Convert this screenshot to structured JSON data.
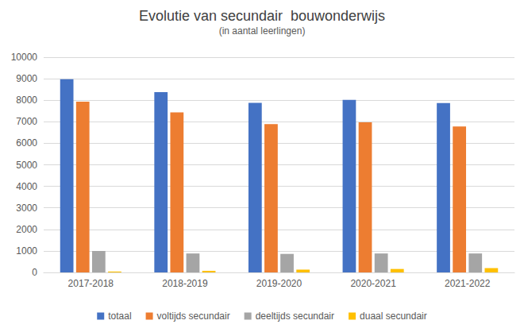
{
  "chart_data": {
    "type": "bar",
    "title": "Evolutie van secundair  bouwonderwijs",
    "subtitle": "(in aantal leerlingen)",
    "categories": [
      "2017-2018",
      "2018-2019",
      "2019-2020",
      "2020-2021",
      "2021-2022"
    ],
    "series": [
      {
        "name": "totaal",
        "color": "#4472c4",
        "values": [
          8980,
          8380,
          7880,
          8020,
          7870
        ]
      },
      {
        "name": "voltijds secundair",
        "color": "#ed7d31",
        "values": [
          7930,
          7440,
          6890,
          6970,
          6780
        ]
      },
      {
        "name": "deeltijds secundair",
        "color": "#a5a5a5",
        "values": [
          1000,
          880,
          860,
          880,
          880
        ]
      },
      {
        "name": "duaal secundair",
        "color": "#ffc000",
        "values": [
          40,
          70,
          130,
          160,
          200
        ]
      }
    ],
    "ylim": [
      0,
      10000
    ],
    "yticks": [
      0,
      1000,
      2000,
      3000,
      4000,
      5000,
      6000,
      7000,
      8000,
      9000,
      10000
    ],
    "grid": true,
    "legend": "bottom"
  }
}
